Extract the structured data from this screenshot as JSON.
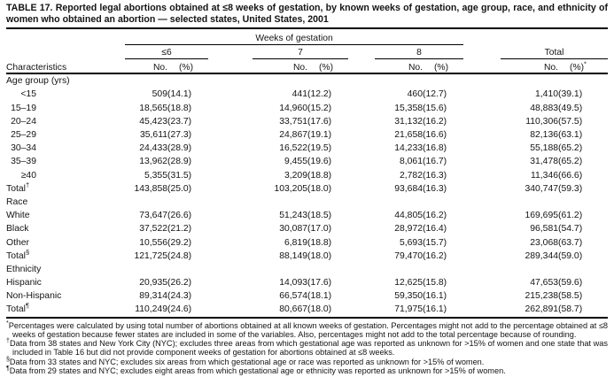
{
  "title": "TABLE 17. Reported legal abortions obtained at ≤8 weeks of gestation, by known weeks of gestation, age group, race, and ethnicity of women who obtained an abortion — selected states, United States, 2001",
  "header": {
    "spanner": "Weeks of gestation",
    "characteristics": "Characteristics",
    "groups": [
      {
        "label": "≤6",
        "no": "No.",
        "pct": "(%)"
      },
      {
        "label": "7",
        "no": "No.",
        "pct": "(%)"
      },
      {
        "label": "8",
        "no": "No.",
        "pct": "(%)"
      },
      {
        "label": "Total",
        "no": "No.",
        "pct": "(%)",
        "pct_sup": "*"
      }
    ]
  },
  "sections": [
    {
      "label": "Age group (yrs)",
      "align_labels_right": true,
      "rows": [
        {
          "label": "<15",
          "cells": [
            "509",
            "(14.1)",
            "441",
            "(12.2)",
            "460",
            "(12.7)",
            "1,410",
            "(39.1)"
          ]
        },
        {
          "label": "15–19",
          "cells": [
            "18,565",
            "(18.8)",
            "14,960",
            "(15.2)",
            "15,358",
            "(15.6)",
            "48,883",
            "(49.5)"
          ]
        },
        {
          "label": "20–24",
          "cells": [
            "45,423",
            "(23.7)",
            "33,751",
            "(17.6)",
            "31,132",
            "(16.2)",
            "110,306",
            "(57.5)"
          ]
        },
        {
          "label": "25–29",
          "cells": [
            "35,611",
            "(27.3)",
            "24,867",
            "(19.1)",
            "21,658",
            "(16.6)",
            "82,136",
            "(63.1)"
          ]
        },
        {
          "label": "30–34",
          "cells": [
            "24,433",
            "(28.9)",
            "16,522",
            "(19.5)",
            "14,233",
            "(16.8)",
            "55,188",
            "(65.2)"
          ]
        },
        {
          "label": "35–39",
          "cells": [
            "13,962",
            "(28.9)",
            "9,455",
            "(19.6)",
            "8,061",
            "(16.7)",
            "31,478",
            "(65.2)"
          ]
        },
        {
          "label": "≥40",
          "cells": [
            "5,355",
            "(31.5)",
            "3,209",
            "(18.8)",
            "2,782",
            "(16.3)",
            "11,346",
            "(66.6)"
          ]
        },
        {
          "label": "Total",
          "sup": "†",
          "total": true,
          "cells": [
            "143,858",
            "(25.0)",
            "103,205",
            "(18.0)",
            "93,684",
            "(16.3)",
            "340,747",
            "(59.3)"
          ]
        }
      ]
    },
    {
      "label": "Race",
      "rows": [
        {
          "label": "White",
          "cells": [
            "73,647",
            "(26.6)",
            "51,243",
            "(18.5)",
            "44,805",
            "(16.2)",
            "169,695",
            "(61.2)"
          ]
        },
        {
          "label": "Black",
          "cells": [
            "37,522",
            "(21.2)",
            "30,087",
            "(17.0)",
            "28,972",
            "(16.4)",
            "96,581",
            "(54.7)"
          ]
        },
        {
          "label": "Other",
          "cells": [
            "10,556",
            "(29.2)",
            "6,819",
            "(18.8)",
            "5,693",
            "(15.7)",
            "23,068",
            "(63.7)"
          ]
        },
        {
          "label": "Total",
          "sup": "§",
          "total": true,
          "cells": [
            "121,725",
            "(24.8)",
            "88,149",
            "(18.0)",
            "79,470",
            "(16.2)",
            "289,344",
            "(59.0)"
          ]
        }
      ]
    },
    {
      "label": "Ethnicity",
      "rows": [
        {
          "label": "Hispanic",
          "cells": [
            "20,935",
            "(26.2)",
            "14,093",
            "(17.6)",
            "12,625",
            "(15.8)",
            "47,653",
            "(59.6)"
          ]
        },
        {
          "label": "Non-Hispanic",
          "cells": [
            "89,314",
            "(24.3)",
            "66,574",
            "(18.1)",
            "59,350",
            "(16.1)",
            "215,238",
            "(58.5)"
          ]
        },
        {
          "label": "Total",
          "sup": "¶",
          "total": true,
          "cells": [
            "110,249",
            "(24.6)",
            "80,667",
            "(18.0)",
            "71,975",
            "(16.1)",
            "262,891",
            "(58.7)"
          ]
        }
      ]
    }
  ],
  "footnotes": [
    {
      "symbol": "*",
      "text": "Percentages were calculated by using total number of abortions obtained at all known weeks of gestation. Percentages might not add to the percentage obtained at ≤8 weeks of gestation because fewer states are included in some of the variables. Also, percentages might not add to the total percentage because of rounding."
    },
    {
      "symbol": "†",
      "text": "Data from 38 states and New York City (NYC); excludes three areas from which gestational age was reported as unknown for >15% of women and one state that was included in Table 16 but did not provide component weeks of gestation for abortions obtained at ≤8 weeks."
    },
    {
      "symbol": "§",
      "text": "Data from 33 states and NYC; excludes six areas from which gestational age or race was reported as unknown for >15% of women."
    },
    {
      "symbol": "¶",
      "text": "Data from 29 states and NYC; excludes eight areas from which gestational age or ethnicity was reported as unknown for >15% of women."
    }
  ],
  "colors": {
    "text": "#141414",
    "rule": "#000000",
    "background": "#ffffff"
  }
}
